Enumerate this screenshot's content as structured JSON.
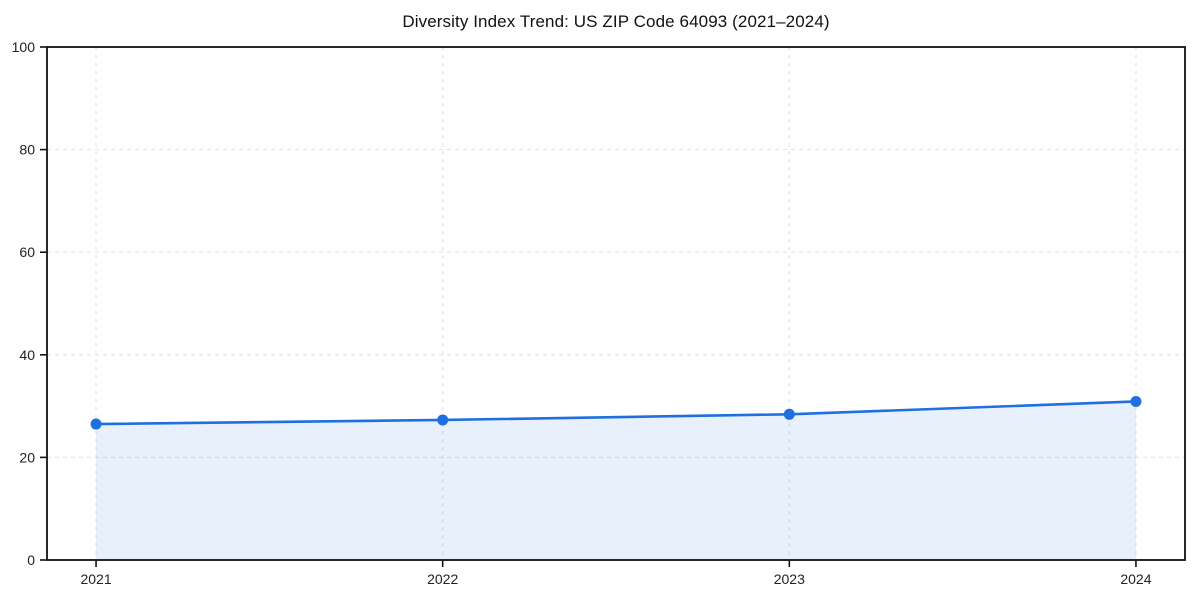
{
  "page": {
    "background": "#ffffff"
  },
  "chart_data": {
    "type": "line",
    "variant": "line-with-area-fill",
    "title": "Diversity Index Trend: US ZIP Code 64093 (2021–2024)",
    "categories": [
      "2021",
      "2022",
      "2023",
      "2024"
    ],
    "series": [
      {
        "name": "Diversity Index",
        "values": [
          26.5,
          27.3,
          28.4,
          30.9
        ]
      }
    ],
    "xlabel": "",
    "ylabel": "",
    "ylim": [
      0,
      100
    ],
    "yticks": [
      0,
      20,
      40,
      60,
      80,
      100
    ],
    "grid": {
      "visible": true,
      "style": "dashed",
      "color": "#e3e3e3"
    },
    "legend_visible": false,
    "colors": {
      "line": "#1f6fe0",
      "marker": "#1f6fe0",
      "area_fill": "rgba(31,111,224,0.10)",
      "spine": "#111111",
      "tick_label": "#222222",
      "title": "#111111",
      "background": "#ffffff"
    }
  }
}
